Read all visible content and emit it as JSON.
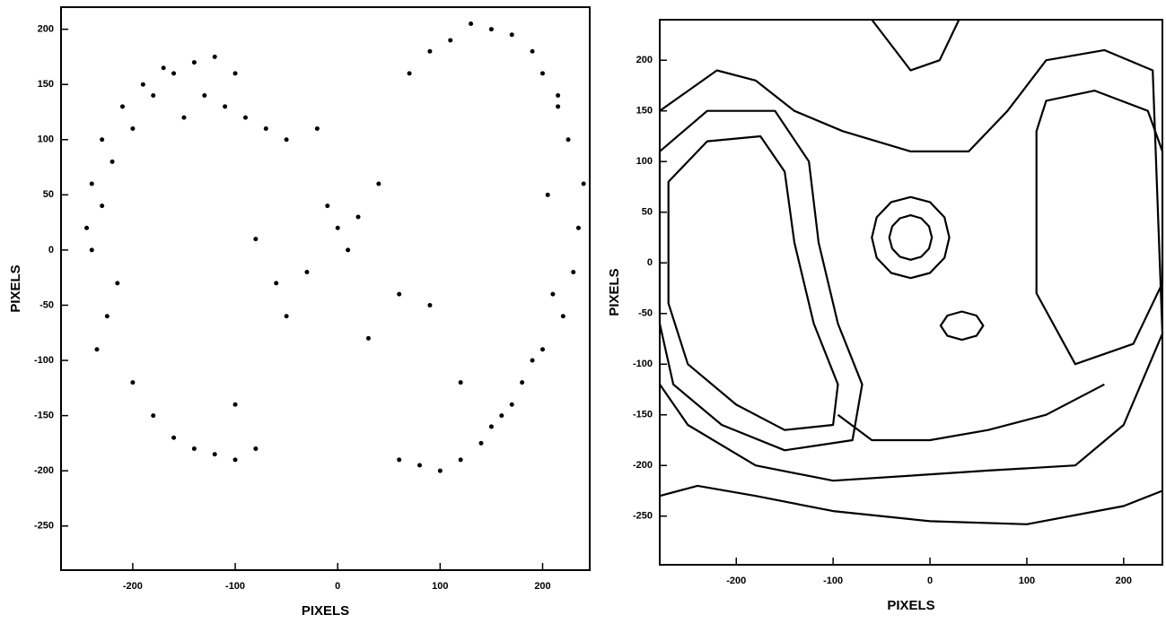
{
  "chart_data": [
    {
      "type": "scatter",
      "xlabel": "PIXELS",
      "ylabel": "PIXELS",
      "color": "#000000",
      "xlim": [
        -270,
        246
      ],
      "ylim": [
        -290,
        220
      ],
      "xticks": [
        -200,
        -100,
        0,
        100,
        200
      ],
      "yticks": [
        200,
        150,
        100,
        50,
        0,
        -50,
        -100,
        -150,
        -200,
        -250
      ],
      "x": [
        -240,
        -230,
        -220,
        -200,
        -180,
        -160,
        -140,
        -120,
        -100,
        -215,
        -225,
        -235,
        -245,
        -240,
        -230,
        -210,
        -190,
        -170,
        -150,
        -130,
        -110,
        -90,
        -70,
        -50,
        -200,
        -180,
        -160,
        -140,
        -120,
        -100,
        -80,
        60,
        80,
        100,
        120,
        140,
        160,
        180,
        200,
        220,
        230,
        235,
        240,
        225,
        215,
        200,
        190,
        170,
        150,
        130,
        110,
        90,
        70,
        150,
        170,
        190,
        210,
        205,
        215,
        0,
        -10,
        10,
        -30,
        20,
        -60,
        -80,
        40,
        60,
        -50,
        30,
        -20,
        -100,
        90,
        120
      ],
      "y": [
        0,
        40,
        80,
        110,
        140,
        160,
        170,
        175,
        160,
        -30,
        -60,
        -90,
        20,
        60,
        100,
        130,
        150,
        165,
        120,
        140,
        130,
        120,
        110,
        100,
        -120,
        -150,
        -170,
        -180,
        -185,
        -190,
        -180,
        -190,
        -195,
        -200,
        -190,
        -175,
        -150,
        -120,
        -90,
        -60,
        -20,
        20,
        60,
        100,
        130,
        160,
        180,
        195,
        200,
        205,
        190,
        180,
        160,
        -160,
        -140,
        -100,
        -40,
        50,
        140,
        20,
        40,
        0,
        -20,
        30,
        -30,
        10,
        60,
        -40,
        -60,
        -80,
        110,
        -140,
        -50,
        -120
      ]
    },
    {
      "type": "contour",
      "xlabel": "PIXELS",
      "ylabel": "PIXELS",
      "color": "#000000",
      "xlim": [
        -279,
        240
      ],
      "ylim": [
        -298,
        240
      ],
      "xticks": [
        -200,
        -100,
        0,
        100,
        200
      ],
      "yticks": [
        200,
        150,
        100,
        50,
        0,
        -50,
        -100,
        -150,
        -200,
        -250
      ],
      "series": [
        {
          "closed": true,
          "x": [
            2,
            -1,
            -9,
            -20,
            -31,
            -39,
            -42,
            -39,
            -31,
            -20,
            -9,
            -1
          ],
          "y": [
            25,
            36,
            44,
            47,
            44,
            36,
            25,
            14,
            6,
            3,
            6,
            14
          ]
        },
        {
          "closed": true,
          "x": [
            20,
            15,
            0,
            -20,
            -40,
            -55,
            -60,
            -55,
            -40,
            -20,
            0,
            15
          ],
          "y": [
            25,
            45,
            60,
            65,
            60,
            45,
            25,
            5,
            -10,
            -15,
            -10,
            5
          ]
        },
        {
          "closed": true,
          "x": [
            55,
            48,
            33,
            18,
            11,
            18,
            33,
            48
          ],
          "y": [
            -62,
            -52,
            -48,
            -52,
            -62,
            -72,
            -76,
            -72
          ]
        },
        {
          "closed": true,
          "x": [
            -270,
            -230,
            -175,
            -150,
            -140,
            -120,
            -95,
            -100,
            -150,
            -200,
            -250,
            -270
          ],
          "y": [
            80,
            120,
            125,
            90,
            20,
            -60,
            -120,
            -160,
            -165,
            -140,
            -100,
            -40
          ]
        },
        {
          "closed": true,
          "x": [
            -279,
            -230,
            -160,
            -125,
            -115,
            -95,
            -70,
            -80,
            -150,
            -215,
            -265,
            -279
          ],
          "y": [
            110,
            150,
            150,
            100,
            20,
            -60,
            -120,
            -175,
            -185,
            -160,
            -120,
            -60
          ]
        },
        {
          "closed": true,
          "x": [
            120,
            170,
            225,
            240,
            240,
            210,
            150,
            110,
            110,
            110
          ],
          "y": [
            160,
            170,
            150,
            110,
            -20,
            -80,
            -100,
            -30,
            60,
            130
          ]
        },
        {
          "closed": false,
          "x": [
            -279,
            -220,
            -180,
            -140,
            -90,
            -20,
            40,
            80,
            120,
            180,
            230,
            240,
            200,
            150,
            60,
            -20,
            -100,
            -180,
            -250,
            -279
          ],
          "y": [
            150,
            190,
            180,
            150,
            130,
            110,
            110,
            150,
            200,
            210,
            190,
            -70,
            -160,
            -200,
            -205,
            -210,
            -215,
            -200,
            -160,
            -120
          ]
        },
        {
          "closed": false,
          "x": [
            -279,
            -240,
            -180,
            -100,
            0,
            100,
            200,
            240
          ],
          "y": [
            -230,
            -220,
            -230,
            -245,
            -255,
            -258,
            -240,
            -225
          ]
        },
        {
          "closed": false,
          "x": [
            -60,
            -20,
            10,
            30
          ],
          "y": [
            240,
            190,
            200,
            240
          ]
        },
        {
          "closed": false,
          "x": [
            -95,
            -60,
            0,
            60,
            120,
            180
          ],
          "y": [
            -150,
            -175,
            -175,
            -165,
            -150,
            -120
          ]
        }
      ]
    }
  ]
}
